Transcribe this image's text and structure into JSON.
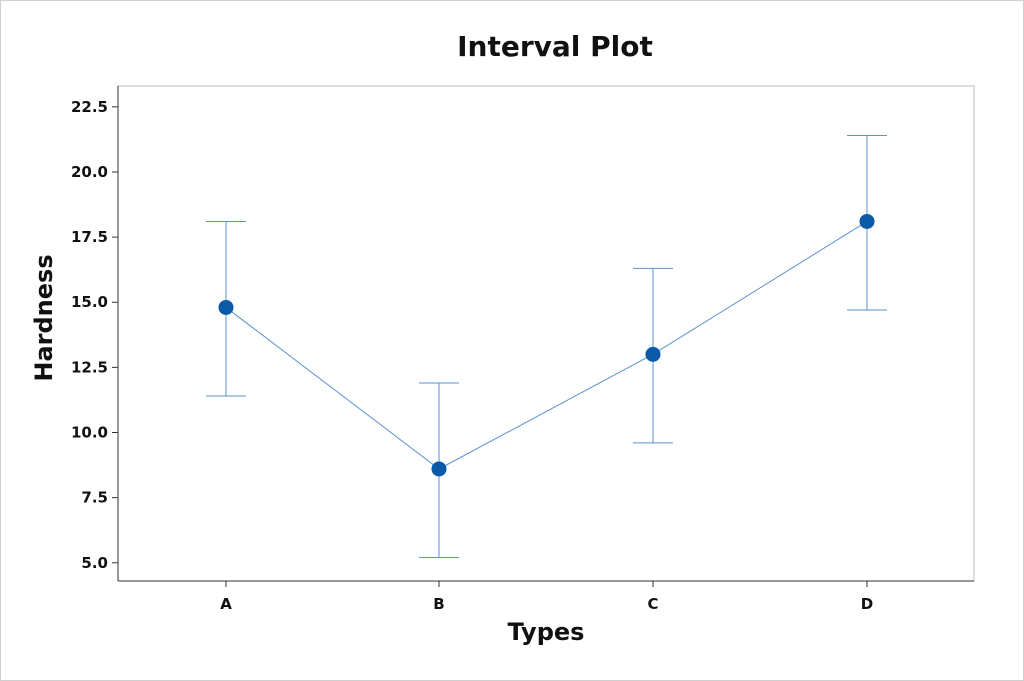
{
  "chart_data": {
    "type": "line",
    "title": "Interval Plot",
    "xlabel": "Types",
    "ylabel": "Hardness",
    "categories": [
      "A",
      "B",
      "C",
      "D"
    ],
    "series": [
      {
        "values": [
          14.8,
          8.6,
          13.0,
          18.1
        ],
        "lower": [
          11.4,
          5.2,
          9.6,
          14.7
        ],
        "upper": [
          18.1,
          11.9,
          16.3,
          21.4
        ]
      }
    ],
    "yticks": [
      "5.0",
      "7.5",
      "10.0",
      "12.5",
      "15.0",
      "17.5",
      "20.0",
      "22.5"
    ],
    "ytick_values": [
      5.0,
      7.5,
      10.0,
      12.5,
      15.0,
      17.5,
      20.0,
      22.5
    ],
    "ylim": [
      4.3,
      23.3
    ],
    "grid": false,
    "colors": {
      "series": "#0b5aa8",
      "line": "#5b92cf",
      "frame": "#bfbfbf"
    }
  }
}
